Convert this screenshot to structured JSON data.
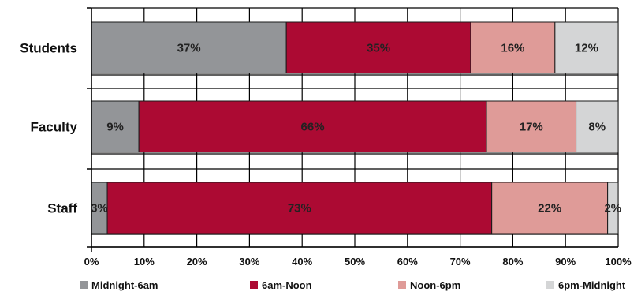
{
  "chart_data": {
    "type": "bar",
    "orientation": "horizontal",
    "stacked": true,
    "categories": [
      "Students",
      "Faculty",
      "Staff"
    ],
    "series": [
      {
        "name": "Midnight-6am",
        "color": "#939598",
        "values": [
          37,
          9,
          3
        ]
      },
      {
        "name": "6am-Noon",
        "color": "#ac0a33",
        "values": [
          35,
          66,
          73
        ]
      },
      {
        "name": "Noon-6pm",
        "color": "#df9b98",
        "values": [
          16,
          17,
          22
        ]
      },
      {
        "name": "6pm-Midnight",
        "color": "#d4d5d6",
        "values": [
          12,
          8,
          2
        ]
      }
    ],
    "x_ticks": [
      "0%",
      "10%",
      "20%",
      "30%",
      "40%",
      "50%",
      "60%",
      "70%",
      "80%",
      "90%",
      "100%"
    ],
    "xlim": [
      0,
      100
    ],
    "grid": true,
    "legend_position": "bottom"
  }
}
